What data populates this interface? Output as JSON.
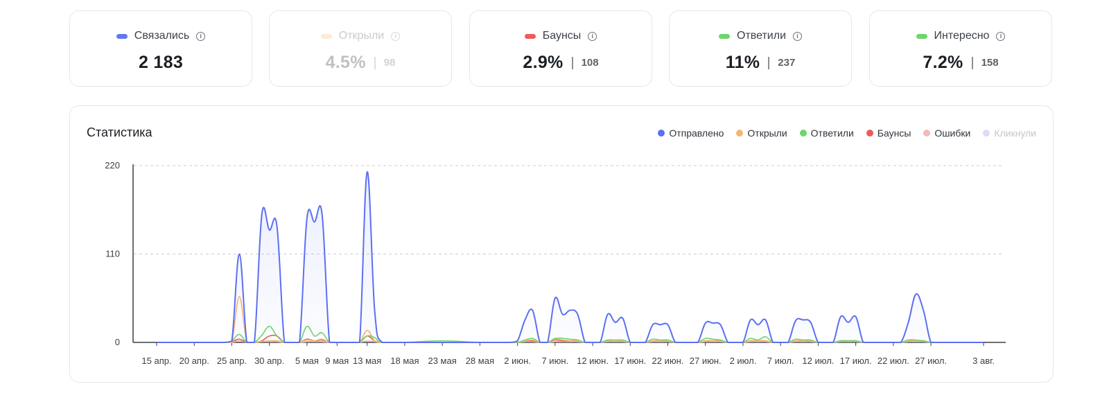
{
  "cards": [
    {
      "label": "Связались",
      "value": "2 183",
      "count": "",
      "color": "#6277f0",
      "disabled": false
    },
    {
      "label": "Открыли",
      "value": "4.5%",
      "count": "98",
      "color": "#f6b872",
      "disabled": true
    },
    {
      "label": "Баунсы",
      "value": "2.9%",
      "count": "108",
      "color": "#ee5b5b",
      "disabled": false
    },
    {
      "label": "Ответили",
      "value": "11%",
      "count": "237",
      "color": "#6bd66b",
      "disabled": false
    },
    {
      "label": "Интересно",
      "value": "7.2%",
      "count": "158",
      "color": "#6bd66b",
      "disabled": false
    }
  ],
  "panel": {
    "title": "Статистика",
    "legend": [
      {
        "label": "Отправлено",
        "color": "#5b6ff2",
        "active": true
      },
      {
        "label": "Открыли",
        "color": "#f4b56e",
        "active": true
      },
      {
        "label": "Ответили",
        "color": "#6cd66c",
        "active": true
      },
      {
        "label": "Баунсы",
        "color": "#ec5a5a",
        "active": true
      },
      {
        "label": "Ошибки",
        "color": "#f3b9b9",
        "active": true
      },
      {
        "label": "Кликнули",
        "color": "#dcdcf7",
        "active": false
      }
    ]
  },
  "chart_data": {
    "type": "area",
    "title": "Статистика",
    "ylim": [
      0,
      220
    ],
    "y_ticks": [
      0,
      110,
      220
    ],
    "x_ticks": [
      "15 апр.",
      "20 апр.",
      "25 апр.",
      "30 апр.",
      "5 мая",
      "9 мая",
      "13 мая",
      "18 мая",
      "23 мая",
      "28 мая",
      "2 июн.",
      "7 июн.",
      "12 июн.",
      "17 июн.",
      "22 июн.",
      "27 июн.",
      "2 июл.",
      "7 июл.",
      "12 июл.",
      "17 июл.",
      "22 июл.",
      "27 июл.",
      "3 авг."
    ],
    "grid": true,
    "legend_position": "top-right",
    "x": [
      "15 апр.",
      "20 апр.",
      "22 апр.",
      "23 апр.",
      "24 апр.",
      "25 апр.",
      "26 апр.",
      "27 апр.",
      "28 апр.",
      "29 апр.",
      "30 апр.",
      "1 мая",
      "2 мая",
      "3 мая",
      "4 мая",
      "5 мая",
      "6 мая",
      "7 мая",
      "8 мая",
      "9 мая",
      "10 мая",
      "11 мая",
      "12 мая",
      "13 мая",
      "14 мая",
      "15 мая",
      "18 мая",
      "23 мая",
      "28 мая",
      "31 мая",
      "1 июн.",
      "2 июн.",
      "3 июн.",
      "4 июн.",
      "5 июн.",
      "6 июн.",
      "7 июн.",
      "8 июн.",
      "9 июн.",
      "10 июн.",
      "11 июн.",
      "12 июн.",
      "13 июн.",
      "14 июн.",
      "15 июн.",
      "16 июн.",
      "17 июн.",
      "18 июн.",
      "19 июн.",
      "20 июн.",
      "21 июн.",
      "22 июн.",
      "23 июн.",
      "24 июн.",
      "25 июн.",
      "26 июн.",
      "27 июн.",
      "28 июн.",
      "29 июн.",
      "30 июн.",
      "1 июл.",
      "2 июл.",
      "3 июл.",
      "4 июл.",
      "5 июл.",
      "6 июл.",
      "7 июл.",
      "8 июл.",
      "9 июл.",
      "10 июл.",
      "11 июл.",
      "12 июл.",
      "13 июл.",
      "14 июл.",
      "15 июл.",
      "16 июл.",
      "17 июл.",
      "18 июл.",
      "19 июл.",
      "20 июл.",
      "21 июл.",
      "22 июл.",
      "23 июл.",
      "24 июл.",
      "25 июл.",
      "26 июл.",
      "27 июл.",
      "28 июл.",
      "29 июл.",
      "30 июл.",
      "31 июл.",
      "1 авг.",
      "3 авг."
    ],
    "series": [
      {
        "name": "Отправлено",
        "values": [
          0,
          0,
          0,
          0,
          0,
          2,
          110,
          0,
          0,
          160,
          140,
          145,
          0,
          0,
          0,
          155,
          150,
          160,
          0,
          0,
          0,
          0,
          0,
          212,
          40,
          0,
          0,
          0,
          0,
          0,
          0,
          2,
          28,
          40,
          0,
          0,
          55,
          35,
          40,
          35,
          0,
          0,
          0,
          35,
          25,
          30,
          0,
          0,
          0,
          22,
          22,
          22,
          0,
          0,
          0,
          0,
          24,
          24,
          22,
          0,
          0,
          0,
          28,
          22,
          28,
          0,
          0,
          0,
          27,
          28,
          25,
          0,
          0,
          0,
          32,
          25,
          32,
          0,
          0,
          0,
          0,
          0,
          0,
          25,
          60,
          40,
          0,
          0,
          0,
          0,
          0,
          0,
          0
        ]
      },
      {
        "name": "Открыли",
        "values": [
          0,
          0,
          0,
          0,
          0,
          1,
          57,
          0,
          0,
          1,
          2,
          2,
          0,
          0,
          0,
          3,
          2,
          4,
          0,
          0,
          0,
          0,
          0,
          15,
          2,
          0,
          0,
          0,
          0,
          0,
          0,
          0,
          2,
          3,
          0,
          0,
          4,
          3,
          2,
          2,
          0,
          0,
          0,
          2,
          2,
          2,
          0,
          0,
          0,
          2,
          2,
          2,
          0,
          0,
          0,
          0,
          2,
          2,
          2,
          0,
          0,
          0,
          2,
          2,
          2,
          0,
          0,
          0,
          2,
          2,
          2,
          0,
          0,
          0,
          2,
          2,
          2,
          0,
          0,
          0,
          0,
          0,
          0,
          2,
          2,
          2,
          0,
          0,
          0,
          0,
          0,
          0,
          0
        ]
      },
      {
        "name": "Ответили",
        "values": [
          0,
          0,
          0,
          0,
          0,
          2,
          10,
          0,
          0,
          9,
          20,
          8,
          0,
          0,
          0,
          20,
          8,
          12,
          0,
          0,
          0,
          0,
          0,
          8,
          6,
          0,
          0,
          2,
          0,
          0,
          0,
          0,
          3,
          5,
          0,
          0,
          5,
          5,
          4,
          3,
          0,
          0,
          0,
          3,
          3,
          3,
          0,
          0,
          0,
          4,
          3,
          3,
          0,
          0,
          0,
          0,
          5,
          4,
          3,
          0,
          0,
          0,
          5,
          3,
          7,
          0,
          0,
          0,
          4,
          3,
          3,
          0,
          0,
          0,
          2,
          2,
          2,
          0,
          0,
          0,
          0,
          0,
          0,
          3,
          3,
          2,
          0,
          0,
          0,
          0,
          0,
          0,
          0
        ]
      },
      {
        "name": "Баунсы",
        "values": [
          0,
          0,
          0,
          0,
          0,
          1,
          4,
          0,
          0,
          2,
          8,
          8,
          0,
          0,
          0,
          4,
          2,
          3,
          0,
          0,
          0,
          0,
          0,
          8,
          2,
          0,
          0,
          0,
          0,
          0,
          0,
          0,
          2,
          2,
          0,
          0,
          3,
          2,
          2,
          2,
          0,
          0,
          0,
          2,
          2,
          2,
          0,
          0,
          0,
          2,
          2,
          2,
          0,
          0,
          0,
          0,
          2,
          2,
          2,
          0,
          0,
          0,
          2,
          2,
          2,
          0,
          0,
          0,
          2,
          2,
          2,
          0,
          0,
          0,
          2,
          2,
          2,
          0,
          0,
          0,
          0,
          0,
          0,
          2,
          2,
          2,
          0,
          0,
          0,
          0,
          0,
          0,
          0
        ]
      },
      {
        "name": "Ошибки",
        "values": [
          0,
          0,
          0,
          0,
          0,
          0,
          2,
          0,
          0,
          1,
          1,
          1,
          0,
          0,
          0,
          1,
          1,
          1,
          0,
          0,
          0,
          0,
          0,
          2,
          1,
          0,
          0,
          0,
          0,
          0,
          0,
          0,
          1,
          1,
          0,
          0,
          1,
          1,
          1,
          1,
          0,
          0,
          0,
          1,
          1,
          1,
          0,
          0,
          0,
          1,
          1,
          1,
          0,
          0,
          0,
          0,
          1,
          1,
          1,
          0,
          0,
          0,
          1,
          1,
          1,
          0,
          0,
          0,
          1,
          1,
          1,
          0,
          0,
          0,
          1,
          1,
          1,
          0,
          0,
          0,
          0,
          0,
          0,
          1,
          1,
          1,
          0,
          0,
          0,
          0,
          0,
          0,
          0
        ]
      }
    ]
  }
}
